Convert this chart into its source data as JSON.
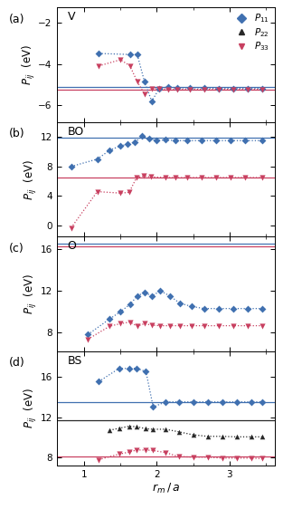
{
  "panels": [
    {
      "label": "(a)",
      "title": "V",
      "ylabel": "$P_{ij}$  (eV)",
      "ylim": [
        -6.8,
        -1.3
      ],
      "yticks": [
        -6,
        -4,
        -2
      ],
      "hline_blue": -5.1,
      "hline_pink": -5.25,
      "hline_black": null,
      "p11_x": [
        1.2,
        1.63,
        1.73,
        1.83,
        1.93,
        2.03,
        2.15,
        2.28,
        2.45,
        2.65,
        2.85,
        3.05,
        3.25,
        3.45
      ],
      "p11_y": [
        -3.5,
        -3.55,
        -3.55,
        -4.85,
        -5.8,
        -5.2,
        -5.1,
        -5.15,
        -5.15,
        -5.15,
        -5.18,
        -5.18,
        -5.18,
        -5.18
      ],
      "p33_x": [
        1.2,
        1.5,
        1.63,
        1.73,
        1.83,
        1.93,
        2.03,
        2.15,
        2.28,
        2.45,
        2.65,
        2.85,
        3.05,
        3.25,
        3.45
      ],
      "p33_y": [
        -4.1,
        -3.8,
        -4.1,
        -4.85,
        -5.45,
        -5.2,
        -5.18,
        -5.22,
        -5.22,
        -5.22,
        -5.22,
        -5.22,
        -5.22,
        -5.22,
        -5.22
      ],
      "p22_x": [],
      "p22_y": []
    },
    {
      "label": "(b)",
      "title": "BO",
      "ylabel": "$P_{ij}$  (eV)",
      "ylim": [
        -1.5,
        14.0
      ],
      "yticks": [
        0,
        4,
        8,
        12
      ],
      "hline_blue": 11.9,
      "hline_pink": 6.5,
      "hline_black": null,
      "p11_x": [
        0.82,
        1.18,
        1.35,
        1.5,
        1.6,
        1.7,
        1.8,
        1.9,
        2.0,
        2.12,
        2.25,
        2.42,
        2.62,
        2.82,
        3.02,
        3.22,
        3.45
      ],
      "p11_y": [
        8.0,
        9.0,
        10.2,
        10.8,
        11.0,
        11.3,
        12.1,
        11.8,
        11.5,
        11.6,
        11.5,
        11.5,
        11.5,
        11.5,
        11.5,
        11.5,
        11.5
      ],
      "p33_x": [
        0.82,
        1.18,
        1.5,
        1.62,
        1.72,
        1.82,
        1.92,
        2.12,
        2.25,
        2.42,
        2.62,
        2.82,
        3.02,
        3.22,
        3.45
      ],
      "p33_y": [
        -0.3,
        4.6,
        4.4,
        4.5,
        6.5,
        6.7,
        6.6,
        6.5,
        6.5,
        6.5,
        6.5,
        6.5,
        6.5,
        6.5,
        6.5
      ],
      "p22_x": [],
      "p22_y": []
    },
    {
      "label": "(c)",
      "title": "O",
      "ylabel": "$P_{ij}$  (eV)",
      "ylim": [
        6.2,
        17.2
      ],
      "yticks": [
        8,
        12,
        16
      ],
      "hline_blue": 16.5,
      "hline_pink": 16.3,
      "hline_black": null,
      "p11_x": [
        1.05,
        1.35,
        1.5,
        1.63,
        1.73,
        1.83,
        1.93,
        2.05,
        2.18,
        2.32,
        2.48,
        2.65,
        2.85,
        3.05,
        3.25,
        3.45
      ],
      "p11_y": [
        7.8,
        9.3,
        10.0,
        10.7,
        11.5,
        11.85,
        11.5,
        12.0,
        11.5,
        10.8,
        10.5,
        10.3,
        10.3,
        10.3,
        10.3,
        10.3
      ],
      "p33_x": [
        1.05,
        1.35,
        1.5,
        1.63,
        1.73,
        1.83,
        1.93,
        2.05,
        2.18,
        2.32,
        2.48,
        2.65,
        2.85,
        3.05,
        3.25,
        3.45
      ],
      "p33_y": [
        7.35,
        8.6,
        8.85,
        9.0,
        8.6,
        8.85,
        8.7,
        8.65,
        8.65,
        8.65,
        8.65,
        8.65,
        8.65,
        8.65,
        8.65,
        8.65
      ],
      "p22_x": [],
      "p22_y": []
    },
    {
      "label": "(d)",
      "title": "BS",
      "ylabel": "$P_{ij}$  (eV)",
      "ylim": [
        7.2,
        18.5
      ],
      "yticks": [
        8,
        12,
        16
      ],
      "hline_blue": 13.5,
      "hline_pink": 8.15,
      "hline_black": 11.7,
      "p11_x": [
        1.2,
        1.48,
        1.62,
        1.72,
        1.85,
        1.95,
        2.12,
        2.3,
        2.5,
        2.7,
        2.9,
        3.1,
        3.3,
        3.45
      ],
      "p11_y": [
        15.5,
        16.8,
        16.8,
        16.8,
        16.5,
        13.0,
        13.5,
        13.5,
        13.5,
        13.5,
        13.5,
        13.5,
        13.5,
        13.5
      ],
      "p33_x": [
        1.2,
        1.48,
        1.62,
        1.72,
        1.85,
        1.95,
        2.12,
        2.3,
        2.5,
        2.7,
        2.9,
        3.1,
        3.3,
        3.45
      ],
      "p33_y": [
        7.8,
        8.35,
        8.55,
        8.75,
        8.75,
        8.7,
        8.5,
        8.1,
        8.05,
        8.05,
        7.95,
        7.95,
        7.95,
        7.9
      ],
      "p22_x": [
        1.35,
        1.48,
        1.62,
        1.72,
        1.85,
        1.95,
        2.12,
        2.3,
        2.5,
        2.7,
        2.9,
        3.1,
        3.3,
        3.45
      ],
      "p22_y": [
        10.7,
        10.9,
        11.1,
        11.05,
        10.85,
        10.8,
        10.8,
        10.55,
        10.25,
        10.1,
        10.1,
        10.05,
        10.05,
        10.05
      ]
    }
  ],
  "color_blue": "#4070B0",
  "color_pink": "#C84060",
  "color_black": "#282828",
  "xlabel": "$r_{m}\\,/\\,a$",
  "xlim": [
    0.62,
    3.62
  ],
  "xticks": [
    1,
    2,
    3
  ]
}
